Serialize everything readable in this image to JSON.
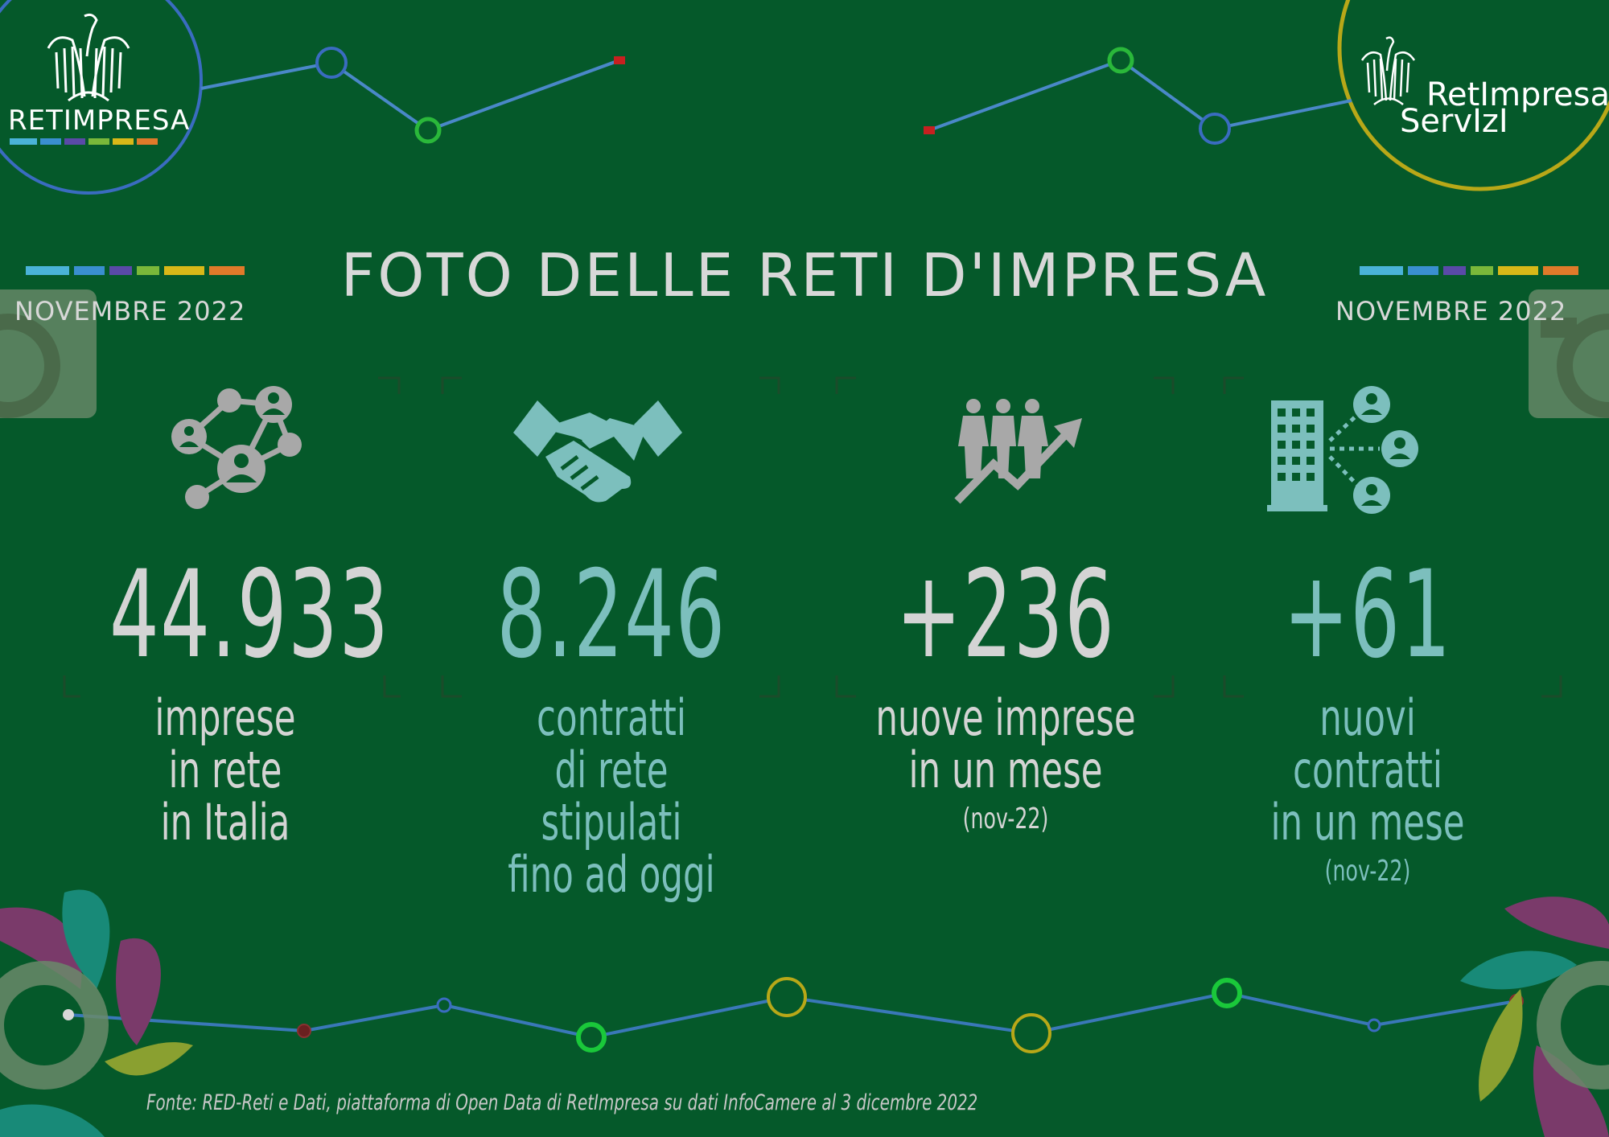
{
  "logos": {
    "left_name": "RETIMPRESA",
    "right_name_line1": "RetImpresa",
    "right_name_line2": "ServIzI"
  },
  "title": "FOTO DELLE RETI D'IMPRESA",
  "month_left": "NOVEMBRE  2022",
  "month_right": "NOVEMBRE  2022",
  "stats": [
    {
      "value": "44.933",
      "lines": [
        "imprese",
        "in rete",
        "in Italia"
      ],
      "note": "",
      "icon": "network-people-icon"
    },
    {
      "value": "8.246",
      "lines": [
        "contratti",
        "di rete stipulati",
        "fino ad oggi"
      ],
      "note": "",
      "icon": "handshake-icon"
    },
    {
      "value": "+236",
      "lines": [
        "nuove imprese",
        "in un mese"
      ],
      "note": "(nov-22)",
      "icon": "people-growth-icon"
    },
    {
      "value": "+61",
      "lines": [
        "nuovi contratti",
        "in un mese"
      ],
      "note": "(nov-22)",
      "icon": "building-network-icon"
    }
  ],
  "source": "Fonte: RED-Reti e Dati, piattaforma di Open Data di RetImpresa su dati InfoCamere al 3 dicembre 2022",
  "colors": {
    "background": "#05592a",
    "accent_teal": "#7cbfbd",
    "text_grey": "#d4d4d4",
    "stripe": [
      "#4ab3d8",
      "#3a8fd0",
      "#5a4aa8",
      "#7ab83a",
      "#d8b818",
      "#e07a2a"
    ]
  }
}
